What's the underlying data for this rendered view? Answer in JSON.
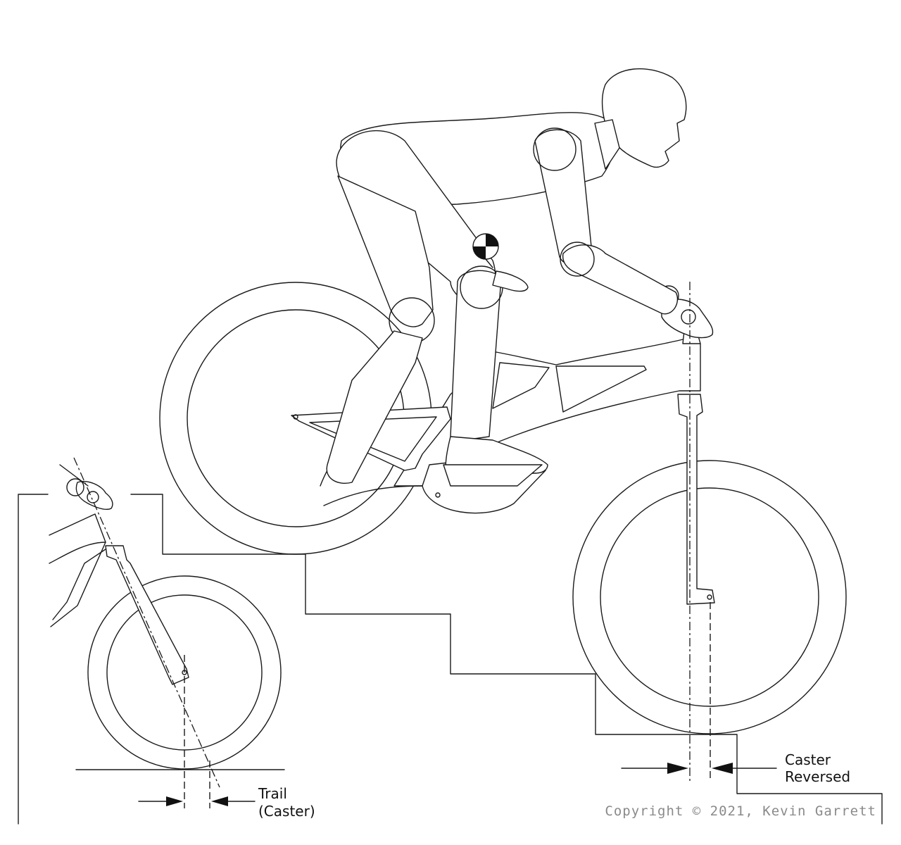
{
  "labels": {
    "trail_line1": "Trail",
    "trail_line2": "(Caster)",
    "caster_line1": "Caster",
    "caster_line2": "Reversed",
    "copyright": "Copyright © 2021, Kevin Garrett"
  }
}
